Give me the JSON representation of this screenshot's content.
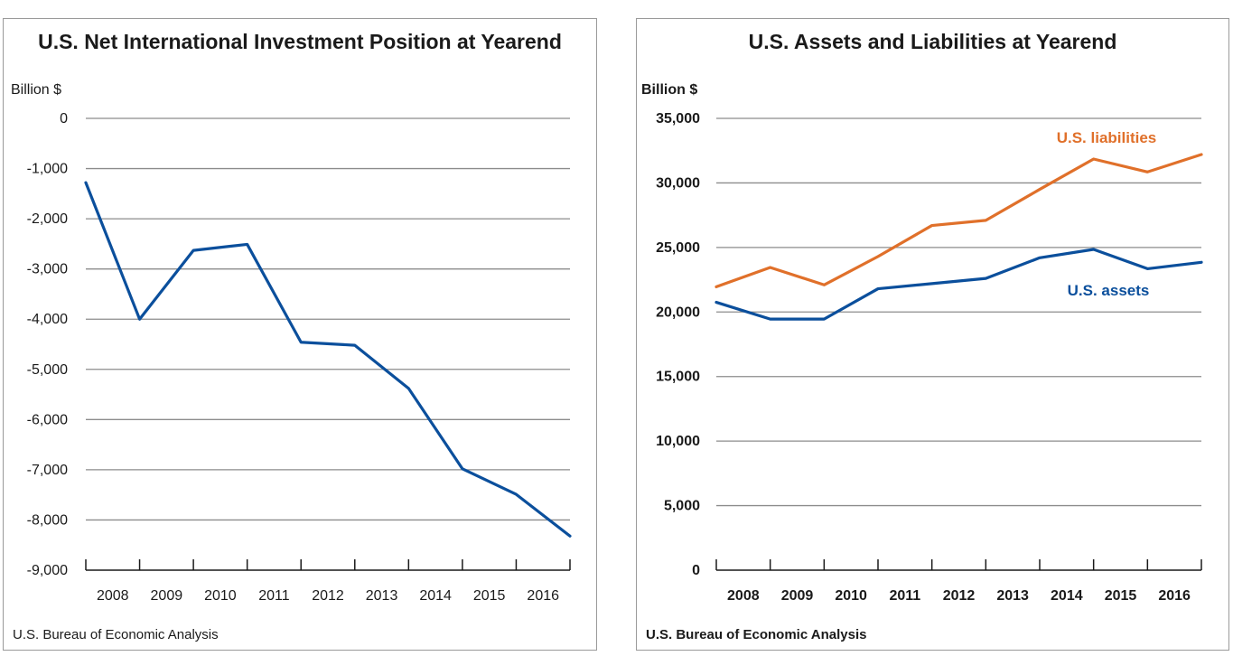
{
  "chart_data": [
    {
      "type": "line",
      "title": "U.S. Net International Investment Position at Yearend",
      "ylabel": "Billion $",
      "source": "U.S. Bureau of Economic Analysis",
      "categories": [
        "2008",
        "2009",
        "2010",
        "2011",
        "2012",
        "2013",
        "2014",
        "2015",
        "2016"
      ],
      "yticks": [
        "0",
        "-1,000",
        "-2,000",
        "-3,000",
        "-4,000",
        "-5,000",
        "-6,000",
        "-7,000",
        "-8,000",
        "-9,000"
      ],
      "ylim": [
        -9000,
        0
      ],
      "grid": true,
      "x": [
        2007,
        2008,
        2009,
        2010,
        2011,
        2012,
        2013,
        2014,
        2015,
        2016
      ],
      "series": [
        {
          "color": "#0b4f9c",
          "values": [
            -1280,
            -4000,
            -2630,
            -2510,
            -4460,
            -4520,
            -5380,
            -6980,
            -7490,
            -8320
          ]
        }
      ]
    },
    {
      "type": "line",
      "title": "U.S. Assets and Liabilities at Yearend",
      "ylabel": "Billion $",
      "source": "U.S. Bureau of Economic Analysis",
      "categories": [
        "2008",
        "2009",
        "2010",
        "2011",
        "2012",
        "2013",
        "2014",
        "2015",
        "2016"
      ],
      "yticks": [
        "35,000",
        "30,000",
        "25,000",
        "20,000",
        "15,000",
        "10,000",
        "5,000",
        "0"
      ],
      "ylim": [
        0,
        35000
      ],
      "grid": true,
      "x": [
        2007,
        2008,
        2009,
        2010,
        2011,
        2012,
        2013,
        2014,
        2015,
        2016
      ],
      "series": [
        {
          "name": "U.S. liabilities",
          "color": "#e0702a",
          "values": [
            21950,
            23450,
            22100,
            24300,
            26700,
            27100,
            29500,
            31850,
            30850,
            32200
          ]
        },
        {
          "name": "U.S. assets",
          "color": "#0b4f9c",
          "values": [
            20750,
            19450,
            19450,
            21800,
            22200,
            22600,
            24200,
            24850,
            23350,
            23850
          ]
        }
      ]
    }
  ]
}
